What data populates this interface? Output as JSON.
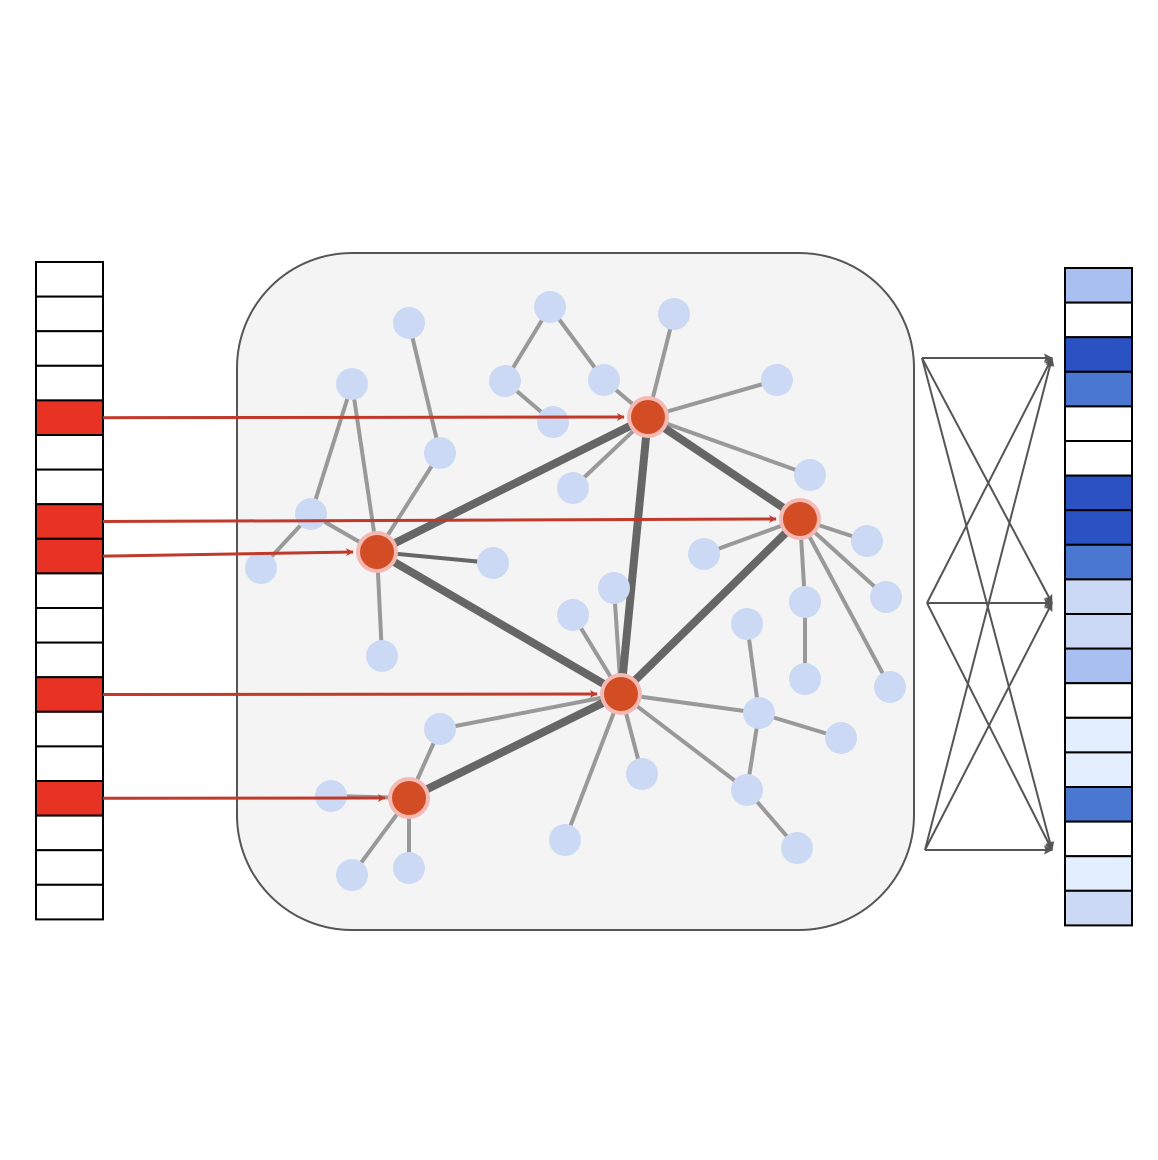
{
  "colors": {
    "active_cell": "#e83324",
    "empty_cell": "#ffffff",
    "cell_border": "#000000",
    "panel_fill": "#f4f4f4",
    "panel_border": "#555555",
    "light_node": "#ccd9f4",
    "hub_node": "#d24d24",
    "hub_halo": "#f5b9b4",
    "light_edge": "#999999",
    "heavy_edge": "#666666",
    "input_arrow": "#c0392b",
    "output_arrow": "#555555",
    "output_levels": [
      "#ffffff",
      "#e3efff",
      "#ccd9f4",
      "#a9bff0",
      "#4a77cf",
      "#2a52c3"
    ]
  },
  "input_vector": {
    "cells": [
      0,
      0,
      0,
      0,
      1,
      0,
      0,
      1,
      1,
      0,
      0,
      0,
      1,
      0,
      0,
      1,
      0,
      0,
      0
    ]
  },
  "output_vector": {
    "cell_levels": [
      3,
      0,
      5,
      4,
      0,
      0,
      5,
      5,
      4,
      2,
      2,
      3,
      0,
      1,
      1,
      4,
      0,
      1,
      2
    ]
  },
  "graph": {
    "hubs": [
      "hub-a",
      "hub-b",
      "hub-c",
      "hub-d",
      "hub-e"
    ],
    "input_links": [
      {
        "cell": 4,
        "hub": "hub-a"
      },
      {
        "cell": 7,
        "hub": "hub-b"
      },
      {
        "cell": 8,
        "hub": "hub-c"
      },
      {
        "cell": 12,
        "hub": "hub-d"
      },
      {
        "cell": 15,
        "hub": "hub-e"
      }
    ]
  }
}
